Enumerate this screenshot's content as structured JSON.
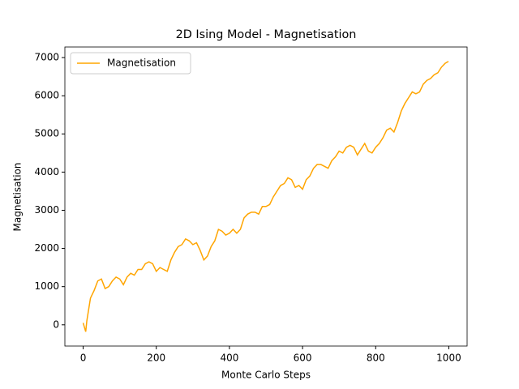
{
  "chart_data": {
    "type": "line",
    "title": "2D Ising Model - Magnetisation",
    "x_label": "Monte Carlo Steps",
    "y_label": "Magnetisation",
    "x": [
      0,
      7,
      10,
      20,
      30,
      40,
      50,
      60,
      70,
      80,
      90,
      100,
      110,
      120,
      130,
      140,
      150,
      160,
      170,
      180,
      190,
      200,
      210,
      220,
      230,
      240,
      250,
      260,
      270,
      280,
      290,
      300,
      310,
      320,
      330,
      340,
      350,
      360,
      370,
      380,
      390,
      400,
      410,
      420,
      430,
      440,
      450,
      460,
      470,
      480,
      490,
      500,
      510,
      520,
      530,
      540,
      550,
      560,
      570,
      580,
      590,
      600,
      610,
      620,
      630,
      640,
      650,
      660,
      670,
      680,
      690,
      700,
      710,
      720,
      730,
      740,
      750,
      760,
      770,
      780,
      790,
      800,
      810,
      820,
      830,
      840,
      850,
      860,
      870,
      880,
      890,
      900,
      910,
      920,
      930,
      940,
      950,
      960,
      970,
      980,
      990,
      999
    ],
    "series": [
      {
        "name": "Magnetisation",
        "color": "#ffa500",
        "values": [
          50,
          -180,
          100,
          700,
          900,
          1150,
          1200,
          950,
          1000,
          1150,
          1250,
          1200,
          1050,
          1250,
          1350,
          1300,
          1450,
          1450,
          1600,
          1650,
          1600,
          1400,
          1500,
          1450,
          1400,
          1700,
          1900,
          2050,
          2100,
          2250,
          2200,
          2100,
          2150,
          1950,
          1700,
          1800,
          2050,
          2200,
          2500,
          2450,
          2350,
          2400,
          2500,
          2400,
          2500,
          2800,
          2900,
          2950,
          2950,
          2900,
          3100,
          3100,
          3150,
          3350,
          3500,
          3650,
          3700,
          3850,
          3800,
          3600,
          3650,
          3550,
          3800,
          3900,
          4100,
          4200,
          4200,
          4150,
          4100,
          4300,
          4400,
          4550,
          4500,
          4650,
          4700,
          4650,
          4450,
          4600,
          4750,
          4550,
          4500,
          4650,
          4750,
          4900,
          5100,
          5150,
          5050,
          5300,
          5600,
          5800,
          5950,
          6100,
          6050,
          6100,
          6300,
          6400,
          6450,
          6550,
          6600,
          6750,
          6850,
          6900
        ]
      }
    ],
    "xlim": [
      -50,
      1050
    ],
    "xticks": [
      0,
      200,
      400,
      600,
      800,
      1000
    ],
    "ylim": [
      -556,
      7276
    ],
    "yticks": [
      0,
      1000,
      2000,
      3000,
      4000,
      5000,
      6000,
      7000
    ],
    "legend": "upper left"
  }
}
